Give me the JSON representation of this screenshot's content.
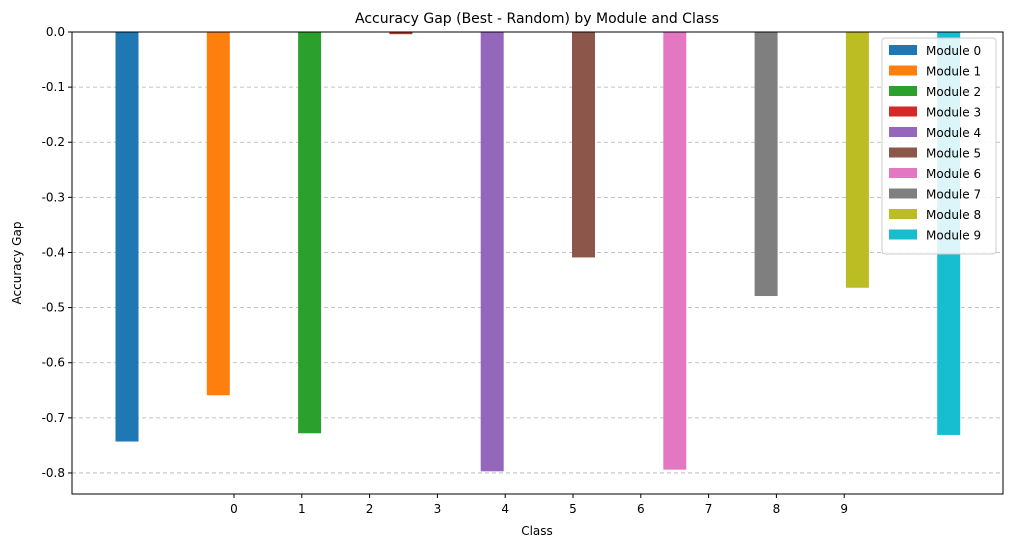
{
  "chart_data": {
    "type": "bar",
    "title": "Accuracy Gap (Best - Random) by Module and Class",
    "xlabel": "Class",
    "ylabel": "Accuracy Gap",
    "ylim": [
      -0.835,
      0.0
    ],
    "yticks": [
      "0.0",
      "-0.1",
      "-0.2",
      "-0.3",
      "-0.4",
      "-0.5",
      "-0.6",
      "-0.7",
      "-0.8"
    ],
    "ytick_values": [
      0.0,
      -0.1,
      -0.2,
      -0.3,
      -0.4,
      -0.5,
      -0.6,
      -0.7,
      -0.8
    ],
    "xticks": [
      "0",
      "1",
      "2",
      "3",
      "4",
      "5",
      "6",
      "7",
      "8",
      "9"
    ],
    "grid": "y dashed",
    "legend_position": "top-right",
    "series": [
      {
        "name": "Module 0",
        "color": "#1f77b4",
        "value": -0.743
      },
      {
        "name": "Module 1",
        "color": "#ff7f0e",
        "value": -0.659
      },
      {
        "name": "Module 2",
        "color": "#2ca02c",
        "value": -0.728
      },
      {
        "name": "Module 3",
        "color": "#d62728",
        "value": -0.004
      },
      {
        "name": "Module 4",
        "color": "#9467bd",
        "value": -0.797
      },
      {
        "name": "Module 5",
        "color": "#8c564b",
        "value": -0.409
      },
      {
        "name": "Module 6",
        "color": "#e377c2",
        "value": -0.794
      },
      {
        "name": "Module 7",
        "color": "#7f7f7f",
        "value": -0.479
      },
      {
        "name": "Module 8",
        "color": "#bcbd22",
        "value": -0.464
      },
      {
        "name": "Module 9",
        "color": "#17becf",
        "value": -0.731
      }
    ]
  }
}
